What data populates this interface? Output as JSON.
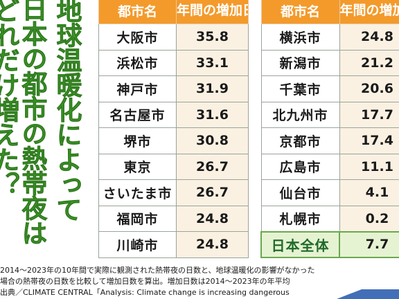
{
  "headline": {
    "col1": "どれだけ増えた？",
    "col2": "日本の都市の熱帯夜は",
    "col3": "地球温暖化によって"
  },
  "table_header": {
    "city": "都市名",
    "days": "年間の増加日数（日）"
  },
  "left_table": {
    "rows": [
      {
        "city": "大阪市",
        "days": "35.8"
      },
      {
        "city": "浜松市",
        "days": "33.1"
      },
      {
        "city": "神戸市",
        "days": "31.9"
      },
      {
        "city": "名古屋市",
        "days": "31.6"
      },
      {
        "city": "堺市",
        "days": "30.8"
      },
      {
        "city": "東京",
        "days": "26.7"
      },
      {
        "city": "さいたま市",
        "days": "26.7"
      },
      {
        "city": "福岡市",
        "days": "24.8"
      },
      {
        "city": "川崎市",
        "days": "24.8"
      }
    ]
  },
  "right_table": {
    "rows": [
      {
        "city": "横浜市",
        "days": "24.8"
      },
      {
        "city": "新潟市",
        "days": "21.2"
      },
      {
        "city": "千葉市",
        "days": "20.6"
      },
      {
        "city": "北九州市",
        "days": "17.7"
      },
      {
        "city": "京都市",
        "days": "17.4"
      },
      {
        "city": "広島市",
        "days": "11.1"
      },
      {
        "city": "仙台市",
        "days": "4.1"
      },
      {
        "city": "札幌市",
        "days": "0.2"
      }
    ],
    "total": {
      "city": "日本全体",
      "days": "7.7"
    }
  },
  "notes": {
    "line1": "2014～2023年の10年間で実際に観測された熱帯夜の日数と、地球温暖化の影響がなかった",
    "line2": "場合の熱帯夜の日数を比較して増加日数を算出。増加日数は2014～2023年の年平均",
    "line3": "出典／CLIMATE CENTRAL「Analysis: Climate change is increasing dangerous"
  },
  "colors": {
    "header_orange": "#f39a2b",
    "value_cell_beige": "#faf1e2",
    "total_row_green": "#e6f3d2",
    "headline_green": "#3f9a2a",
    "headline_dark_green": "#1f6b2b"
  }
}
